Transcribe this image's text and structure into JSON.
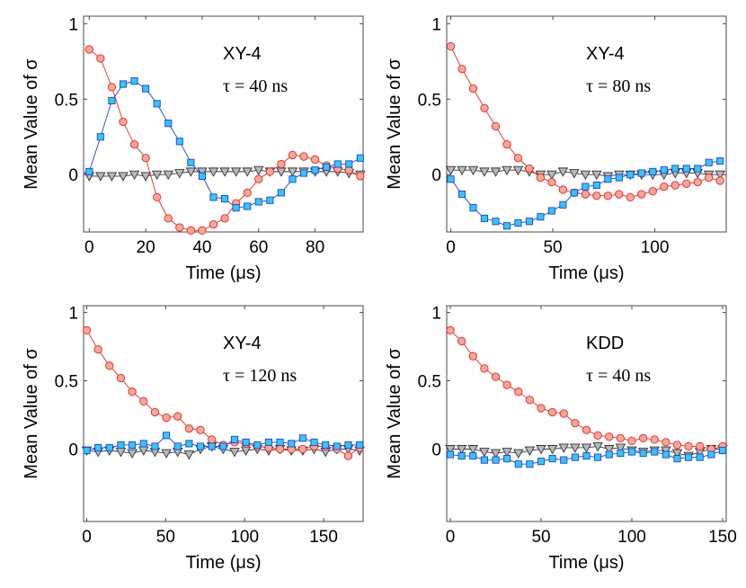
{
  "chart_data": [
    {
      "type": "scatter",
      "panel": "top-left",
      "ylabel": "Mean Value of σ",
      "xlabel": "Time (μs)",
      "xlim": [
        -2,
        97
      ],
      "ylim": [
        -0.38,
        1.05
      ],
      "xticks": [
        "0",
        "20",
        "40",
        "60",
        "80"
      ],
      "xtick_values": [
        0,
        20,
        40,
        60,
        80
      ],
      "yticks": [
        "0",
        "0.5",
        "1"
      ],
      "ytick_values": [
        0,
        0.5,
        1
      ],
      "annotation_sequence": "XY-4",
      "annotation_tau": "τ = 40 ns",
      "series": [
        {
          "name": "red-circles",
          "marker": "circle",
          "color": "#f7a69a",
          "edge": "#e8281e",
          "x": [
            0,
            4,
            8,
            12,
            16,
            20,
            24,
            28,
            32,
            36,
            40,
            44,
            48,
            52,
            56,
            60,
            64,
            68,
            72,
            76,
            80,
            84,
            88,
            92,
            96
          ],
          "y": [
            0.83,
            0.77,
            0.58,
            0.35,
            0.2,
            0.11,
            -0.15,
            -0.29,
            -0.35,
            -0.37,
            -0.37,
            -0.33,
            -0.29,
            -0.19,
            -0.12,
            -0.03,
            0.02,
            0.07,
            0.13,
            0.12,
            0.1,
            0.06,
            0.04,
            0.03,
            -0.01
          ]
        },
        {
          "name": "blue-squares",
          "marker": "square",
          "color": "#33c8f0",
          "edge": "#1f3fe0",
          "x": [
            0,
            4,
            8,
            12,
            16,
            20,
            24,
            28,
            32,
            36,
            40,
            44,
            48,
            52,
            56,
            60,
            64,
            68,
            72,
            76,
            80,
            84,
            88,
            92,
            96
          ],
          "y": [
            0.02,
            0.25,
            0.49,
            0.6,
            0.62,
            0.57,
            0.47,
            0.34,
            0.22,
            0.08,
            -0.01,
            -0.15,
            -0.16,
            -0.22,
            -0.21,
            -0.18,
            -0.17,
            -0.12,
            -0.03,
            0.01,
            0.03,
            0.05,
            0.07,
            0.07,
            0.11
          ]
        },
        {
          "name": "gray-triangles",
          "marker": "triangle",
          "color": "#b9b9b9",
          "edge": "#333333",
          "x": [
            0,
            4,
            8,
            12,
            16,
            20,
            24,
            28,
            32,
            36,
            40,
            44,
            48,
            52,
            56,
            60,
            64,
            68,
            72,
            76,
            80,
            84,
            88,
            92,
            96
          ],
          "y": [
            -0.01,
            -0.01,
            -0.01,
            -0.01,
            0.0,
            -0.01,
            0.0,
            0.0,
            0.01,
            0.02,
            0.02,
            0.02,
            0.02,
            0.02,
            0.02,
            0.03,
            0.02,
            0.02,
            0.02,
            0.02,
            0.02,
            0.02,
            0.02,
            0.01,
            0.0
          ]
        }
      ]
    },
    {
      "type": "scatter",
      "panel": "top-right",
      "ylabel": "Mean Value of σ",
      "xlabel": "Time (μs)",
      "xlim": [
        -2,
        135
      ],
      "ylim": [
        -0.38,
        1.05
      ],
      "xticks": [
        "0",
        "50",
        "100"
      ],
      "xtick_values": [
        0,
        50,
        100
      ],
      "yticks": [
        "0",
        "0.5",
        "1"
      ],
      "ytick_values": [
        0,
        0.5,
        1
      ],
      "annotation_sequence": "XY-4",
      "annotation_tau": "τ = 80 ns",
      "series": [
        {
          "name": "red-circles",
          "marker": "circle",
          "color": "#f7a69a",
          "edge": "#e8281e",
          "x": [
            0,
            5.5,
            11,
            16.5,
            22,
            27.5,
            33,
            38.5,
            44,
            49.5,
            55,
            60.5,
            66,
            71.5,
            77,
            82.5,
            88,
            93.5,
            99,
            104.5,
            110,
            115.5,
            121,
            126.5,
            132
          ],
          "y": [
            0.85,
            0.7,
            0.57,
            0.44,
            0.32,
            0.2,
            0.11,
            0.04,
            -0.02,
            -0.05,
            -0.1,
            -0.12,
            -0.13,
            -0.14,
            -0.14,
            -0.13,
            -0.15,
            -0.13,
            -0.11,
            -0.08,
            -0.07,
            -0.06,
            -0.05,
            -0.02,
            -0.04
          ]
        },
        {
          "name": "blue-squares",
          "marker": "square",
          "color": "#33c8f0",
          "edge": "#1f3fe0",
          "x": [
            0,
            5.5,
            11,
            16.5,
            22,
            27.5,
            33,
            38.5,
            44,
            49.5,
            55,
            60.5,
            66,
            71.5,
            77,
            82.5,
            88,
            93.5,
            99,
            104.5,
            110,
            115.5,
            121,
            126.5,
            132
          ],
          "y": [
            -0.03,
            -0.13,
            -0.22,
            -0.29,
            -0.31,
            -0.34,
            -0.32,
            -0.31,
            -0.28,
            -0.24,
            -0.2,
            -0.12,
            -0.08,
            -0.07,
            -0.03,
            -0.02,
            0.0,
            0.01,
            0.02,
            0.03,
            0.04,
            0.04,
            0.04,
            0.08,
            0.09
          ]
        },
        {
          "name": "gray-triangles",
          "marker": "triangle",
          "color": "#b9b9b9",
          "edge": "#333333",
          "x": [
            0,
            5.5,
            11,
            16.5,
            22,
            27.5,
            33,
            38.5,
            44,
            49.5,
            55,
            60.5,
            66,
            71.5,
            77,
            82.5,
            88,
            93.5,
            99,
            104.5,
            110,
            115.5,
            121,
            126.5,
            132
          ],
          "y": [
            0.03,
            0.03,
            0.03,
            0.02,
            0.02,
            0.03,
            0.03,
            0.02,
            0.0,
            0.0,
            0.02,
            0.01,
            0.0,
            0.0,
            -0.01,
            0.0,
            0.0,
            0.0,
            0.0,
            0.0,
            0.01,
            0.01,
            0.01,
            0.0,
            0.0
          ]
        }
      ]
    },
    {
      "type": "scatter",
      "panel": "bottom-left",
      "ylabel": "Mean Value of σ",
      "xlabel": "Time (μs)",
      "xlim": [
        -2,
        175
      ],
      "ylim": [
        -0.53,
        1.05
      ],
      "xticks": [
        "0",
        "50",
        "100",
        "150"
      ],
      "xtick_values": [
        0,
        50,
        100,
        150
      ],
      "yticks": [
        "0",
        "0.5",
        "1"
      ],
      "ytick_values": [
        0,
        0.5,
        1
      ],
      "annotation_sequence": "XY-4",
      "annotation_tau": "τ = 120 ns",
      "series": [
        {
          "name": "red-circles",
          "marker": "circle",
          "color": "#f7a69a",
          "edge": "#e8281e",
          "x": [
            0,
            7.2,
            14.4,
            21.6,
            28.8,
            36,
            43.2,
            50.4,
            57.6,
            64.8,
            72,
            79.2,
            86.4,
            93.6,
            100.8,
            108,
            115.2,
            122.4,
            129.6,
            136.8,
            144,
            151.2,
            158.4,
            165.6,
            172.8
          ],
          "y": [
            0.87,
            0.73,
            0.61,
            0.52,
            0.42,
            0.35,
            0.27,
            0.23,
            0.24,
            0.15,
            0.14,
            0.07,
            0.03,
            0.05,
            0.04,
            0.02,
            0.01,
            0.0,
            0.0,
            0.0,
            0.02,
            0.02,
            0.0,
            -0.05,
            0.01
          ]
        },
        {
          "name": "blue-squares",
          "marker": "square",
          "color": "#33c8f0",
          "edge": "#1f3fe0",
          "x": [
            0,
            7.2,
            14.4,
            21.6,
            28.8,
            36,
            43.2,
            50.4,
            57.6,
            64.8,
            72,
            79.2,
            86.4,
            93.6,
            100.8,
            108,
            115.2,
            122.4,
            129.6,
            136.8,
            144,
            151.2,
            158.4,
            165.6,
            172.8
          ],
          "y": [
            -0.01,
            0.01,
            0.01,
            0.03,
            0.03,
            0.04,
            0.02,
            0.1,
            0.02,
            0.04,
            0.02,
            0.02,
            0.02,
            0.07,
            0.05,
            0.03,
            0.05,
            0.05,
            0.04,
            0.08,
            0.05,
            0.03,
            0.02,
            0.03,
            0.03
          ]
        },
        {
          "name": "gray-triangles",
          "marker": "triangle",
          "color": "#b9b9b9",
          "edge": "#333333",
          "x": [
            0,
            7.2,
            14.4,
            21.6,
            28.8,
            36,
            43.2,
            50.4,
            57.6,
            64.8,
            72,
            79.2,
            86.4,
            93.6,
            100.8,
            108,
            115.2,
            122.4,
            129.6,
            136.8,
            144,
            151.2,
            158.4,
            165.6,
            172.8
          ],
          "y": [
            -0.01,
            -0.02,
            -0.01,
            -0.02,
            -0.03,
            -0.01,
            -0.02,
            -0.03,
            -0.02,
            -0.04,
            0.0,
            0.02,
            0.0,
            -0.02,
            -0.01,
            0.0,
            -0.01,
            0.0,
            -0.01,
            -0.01,
            0.0,
            -0.02,
            0.0,
            0.0,
            -0.01
          ]
        }
      ]
    },
    {
      "type": "scatter",
      "panel": "bottom-right",
      "ylabel": "Mean Value of σ",
      "xlabel": "Time (μs)",
      "xlim": [
        -2,
        152
      ],
      "ylim": [
        -0.53,
        1.05
      ],
      "xticks": [
        "0",
        "50",
        "100",
        "150"
      ],
      "xtick_values": [
        0,
        50,
        100,
        150
      ],
      "yticks": [
        "0",
        "0.5",
        "1"
      ],
      "ytick_values": [
        0,
        0.5,
        1
      ],
      "annotation_sequence": "KDD",
      "annotation_tau": "τ = 40 ns",
      "series": [
        {
          "name": "red-circles",
          "marker": "circle",
          "color": "#f7a69a",
          "edge": "#e8281e",
          "x": [
            0,
            6.25,
            12.5,
            18.75,
            25,
            31.25,
            37.5,
            43.75,
            50,
            56.25,
            62.5,
            68.75,
            75,
            81.25,
            87.5,
            93.75,
            100,
            106.25,
            112.5,
            118.75,
            125,
            131.25,
            137.5,
            143.75,
            150
          ],
          "y": [
            0.87,
            0.79,
            0.68,
            0.59,
            0.53,
            0.47,
            0.42,
            0.36,
            0.3,
            0.27,
            0.26,
            0.19,
            0.14,
            0.1,
            0.09,
            0.08,
            0.06,
            0.08,
            0.07,
            0.05,
            0.03,
            0.02,
            0.02,
            0.0,
            0.02
          ]
        },
        {
          "name": "blue-squares",
          "marker": "square",
          "color": "#33c8f0",
          "edge": "#1f3fe0",
          "x": [
            0,
            6.25,
            12.5,
            18.75,
            25,
            31.25,
            37.5,
            43.75,
            50,
            56.25,
            62.5,
            68.75,
            75,
            81.25,
            87.5,
            93.75,
            100,
            106.25,
            112.5,
            118.75,
            125,
            131.25,
            137.5,
            143.75,
            150
          ],
          "y": [
            -0.04,
            -0.05,
            -0.05,
            -0.08,
            -0.08,
            -0.07,
            -0.11,
            -0.11,
            -0.09,
            -0.07,
            -0.08,
            -0.06,
            -0.05,
            -0.06,
            -0.04,
            -0.03,
            -0.02,
            -0.03,
            -0.02,
            -0.04,
            -0.07,
            -0.06,
            -0.06,
            -0.04,
            -0.01
          ]
        },
        {
          "name": "gray-triangles",
          "marker": "triangle",
          "color": "#b9b9b9",
          "edge": "#333333",
          "x": [
            0,
            6.25,
            12.5,
            18.75,
            25,
            31.25,
            37.5,
            43.75,
            50,
            56.25,
            62.5,
            68.75,
            75,
            81.25,
            87.5,
            93.75,
            100,
            106.25,
            112.5,
            118.75,
            125,
            131.25,
            137.5,
            143.75,
            150
          ],
          "y": [
            0.0,
            0.0,
            0.0,
            -0.02,
            -0.03,
            -0.02,
            -0.03,
            -0.01,
            0.0,
            0.0,
            0.01,
            0.01,
            0.01,
            0.02,
            0.0,
            0.01,
            -0.01,
            -0.02,
            -0.01,
            -0.01,
            -0.03,
            -0.05,
            -0.02,
            0.0,
            0.0
          ]
        }
      ]
    }
  ]
}
